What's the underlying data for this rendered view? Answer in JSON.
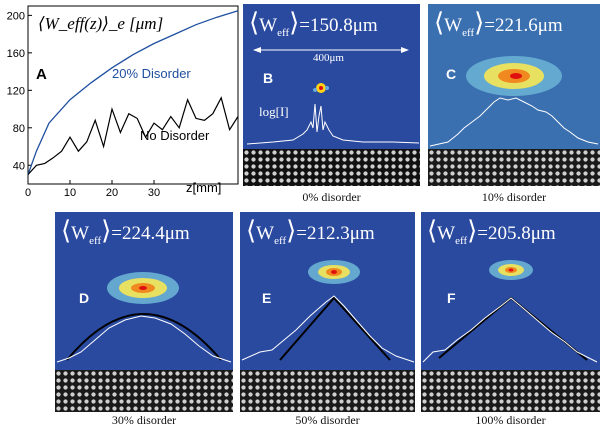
{
  "graph": {
    "panel_label": "A",
    "ylabel": "⟨W_eff(z)⟩_e [μm]",
    "xlabel": "z[mm]",
    "series_label_disorder": "20% Disorder",
    "series_label_none": "No Disorder"
  },
  "chart_data": {
    "type": "line",
    "xlabel": "z[mm]",
    "ylabel": "⟨W_eff(z)⟩_e [μm]",
    "xlim": [
      0,
      50
    ],
    "ylim": [
      20,
      210
    ],
    "x_ticks": [
      0,
      10,
      20,
      30
    ],
    "y_ticks": [
      40,
      80,
      120,
      160,
      200
    ],
    "series": [
      {
        "name": "20% Disorder",
        "x": [
          0,
          2,
          5,
          10,
          15,
          20,
          25,
          30,
          35,
          40,
          45,
          50
        ],
        "values": [
          30,
          55,
          85,
          110,
          128,
          144,
          158,
          170,
          180,
          190,
          198,
          205
        ]
      },
      {
        "name": "No Disorder",
        "x": [
          0,
          2,
          4,
          6,
          8,
          10,
          12,
          14,
          16,
          18,
          20,
          22,
          24,
          26,
          28,
          30,
          32,
          34,
          36,
          38,
          40,
          42,
          44,
          46,
          48,
          50
        ],
        "values": [
          30,
          40,
          42,
          48,
          55,
          70,
          55,
          65,
          88,
          60,
          100,
          75,
          95,
          90,
          70,
          85,
          78,
          92,
          80,
          110,
          90,
          88,
          95,
          112,
          78,
          92
        ]
      }
    ]
  },
  "panels": [
    {
      "id": "B",
      "label": "B",
      "weff": "=150.8μm",
      "caption": "0% disorder",
      "scale": "400μm",
      "intensity": "log[I]"
    },
    {
      "id": "C",
      "label": "C",
      "weff": "=221.6μm",
      "caption": "10% disorder"
    },
    {
      "id": "D",
      "label": "D",
      "weff": "=224.4μm",
      "caption": "30% disorder"
    },
    {
      "id": "E",
      "label": "E",
      "weff": "=212.3μm",
      "caption": "50% disorder"
    },
    {
      "id": "F",
      "label": "F",
      "weff": "=205.8μm",
      "caption": "100% disorder"
    }
  ],
  "weff_symbol": "W",
  "weff_sub": "eff",
  "colors": {
    "panel_bg": "#2a4aa0",
    "blue_curve": "#1f4fa0",
    "black_curve": "#000000"
  }
}
